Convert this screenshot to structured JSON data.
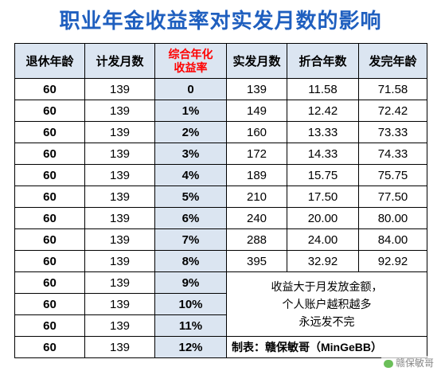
{
  "title": "职业年金收益率对实发月数的影响",
  "headers": [
    "退休年龄",
    "计发月数",
    "综合年化\n收益率",
    "实发月数",
    "折合年数",
    "发完年龄"
  ],
  "rows": [
    {
      "age": "60",
      "months": "139",
      "rate": "0",
      "actual": "139",
      "years": "11.58",
      "end_age": "71.58"
    },
    {
      "age": "60",
      "months": "139",
      "rate": "1%",
      "actual": "149",
      "years": "12.42",
      "end_age": "72.42"
    },
    {
      "age": "60",
      "months": "139",
      "rate": "2%",
      "actual": "160",
      "years": "13.33",
      "end_age": "73.33"
    },
    {
      "age": "60",
      "months": "139",
      "rate": "3%",
      "actual": "172",
      "years": "14.33",
      "end_age": "74.33"
    },
    {
      "age": "60",
      "months": "139",
      "rate": "4%",
      "actual": "189",
      "years": "15.75",
      "end_age": "75.75"
    },
    {
      "age": "60",
      "months": "139",
      "rate": "5%",
      "actual": "210",
      "years": "17.50",
      "end_age": "77.50"
    },
    {
      "age": "60",
      "months": "139",
      "rate": "6%",
      "actual": "240",
      "years": "20.00",
      "end_age": "80.00"
    },
    {
      "age": "60",
      "months": "139",
      "rate": "7%",
      "actual": "288",
      "years": "24.00",
      "end_age": "84.00"
    },
    {
      "age": "60",
      "months": "139",
      "rate": "8%",
      "actual": "395",
      "years": "32.92",
      "end_age": "92.92"
    }
  ],
  "extra_rows": [
    {
      "age": "60",
      "months": "139",
      "rate": "9%"
    },
    {
      "age": "60",
      "months": "139",
      "rate": "10%"
    },
    {
      "age": "60",
      "months": "139",
      "rate": "11%"
    },
    {
      "age": "60",
      "months": "139",
      "rate": "12%"
    }
  ],
  "note_lines": [
    "收益大于月发放金额，",
    "个人账户越积越多",
    "永远发不完"
  ],
  "footer": "制表：赣保敏哥（MinGeBB）",
  "watermark": "赣保敏哥"
}
